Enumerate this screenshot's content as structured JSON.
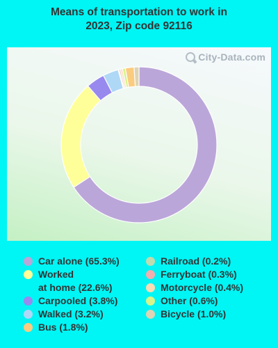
{
  "title_line1": "Means of transportation to work in",
  "title_line2": "2023, Zip code 92116",
  "watermark": "City-Data.com",
  "chart_data": {
    "type": "pie",
    "title": "Means of transportation to work in 2023, Zip code 92116",
    "series": [
      {
        "name": "Car alone",
        "value": 65.3,
        "color": "#bba6d9"
      },
      {
        "name": "Worked at home",
        "value": 22.6,
        "color": "#ffff99"
      },
      {
        "name": "Carpooled",
        "value": 3.8,
        "color": "#9889ef"
      },
      {
        "name": "Walked",
        "value": 3.2,
        "color": "#aed8f6"
      },
      {
        "name": "Railroad",
        "value": 0.2,
        "color": "#bedcaf"
      },
      {
        "name": "Ferryboat",
        "value": 0.3,
        "color": "#f4aeae"
      },
      {
        "name": "Motorcycle",
        "value": 0.4,
        "color": "#f8dcb4"
      },
      {
        "name": "Other",
        "value": 0.6,
        "color": "#d6f48a"
      },
      {
        "name": "Bus",
        "value": 1.8,
        "color": "#fbcc7f"
      },
      {
        "name": "Bicycle",
        "value": 1.0,
        "color": "#dcd4b4"
      }
    ]
  },
  "legend": {
    "left": [
      {
        "label": "Car alone",
        "value": "(65.3%)",
        "color": "#bba6d9"
      },
      {
        "label": "Worked",
        "label2": "at home",
        "value": "(22.6%)",
        "color": "#ffff99"
      },
      {
        "label": "Carpooled",
        "value": "(3.8%)",
        "color": "#9889ef"
      },
      {
        "label": "Walked",
        "value": "(3.2%)",
        "color": "#aed8f6"
      },
      {
        "label": "Bus",
        "value": "(1.8%)",
        "color": "#fbcc7f"
      }
    ],
    "right": [
      {
        "label": "Railroad",
        "value": "(0.2%)",
        "color": "#bedcaf"
      },
      {
        "label": "Ferryboat",
        "value": "(0.3%)",
        "color": "#f4aeae"
      },
      {
        "label": "Motorcycle",
        "value": "(0.4%)",
        "color": "#f8dcb4"
      },
      {
        "label": "Other",
        "value": "(0.6%)",
        "color": "#d6f48a"
      },
      {
        "label": "Bicycle",
        "value": "(1.0%)",
        "color": "#dcd4b4"
      }
    ]
  }
}
